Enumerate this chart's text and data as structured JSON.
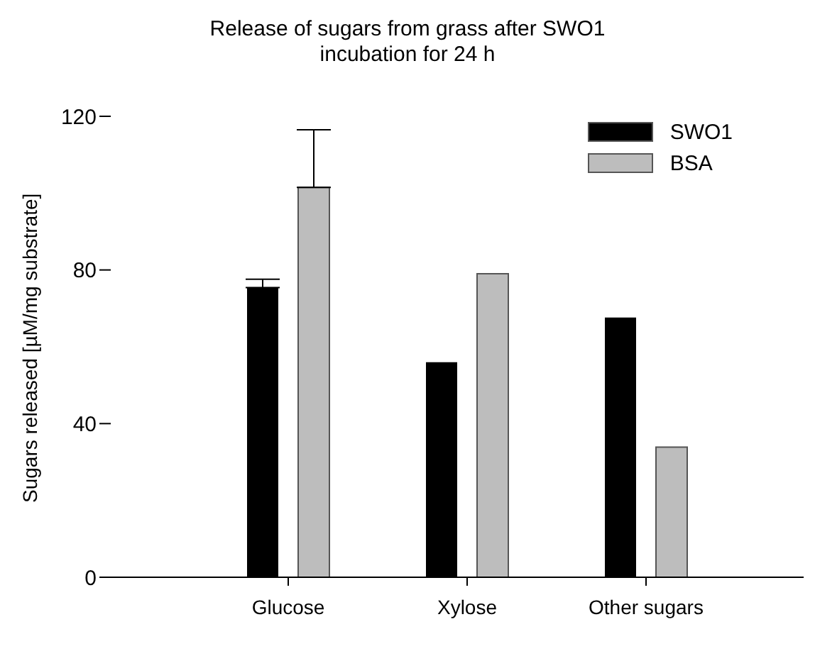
{
  "chart_data": {
    "type": "bar",
    "title": "Release of sugars from grass after SWO1\nincubation for 24 h",
    "ylabel": "Sugars released [µM/mg substrate]",
    "categories": [
      "Glucose",
      "Xylose",
      "Other sugars"
    ],
    "series": [
      {
        "name": "SWO1",
        "color": "#000000",
        "values": [
          75.4,
          56,
          67.6
        ],
        "errors": [
          [
            75.4,
            77.6
          ],
          null,
          null
        ]
      },
      {
        "name": "BSA",
        "color": "#bdbdbd",
        "values": [
          101.5,
          79,
          33.9
        ],
        "errors": [
          [
            101.5,
            116.5
          ],
          null,
          null
        ]
      }
    ],
    "ylim": [
      0,
      120
    ],
    "yticks": [
      0,
      40,
      80,
      120
    ],
    "grid": false,
    "legend": "top right"
  }
}
